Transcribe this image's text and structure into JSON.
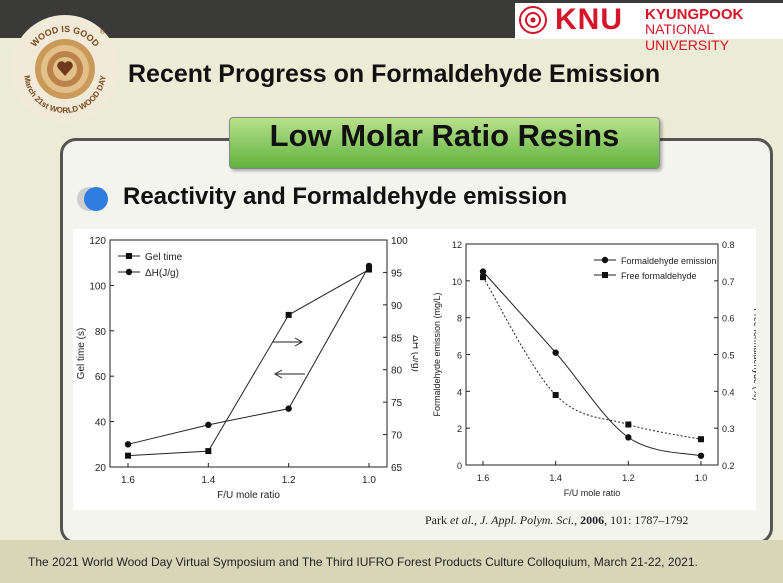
{
  "header": {
    "university_logo": {
      "mark": "KNU",
      "name_line1": "KYUNGPOOK",
      "name_line2": "NATIONAL UNIVERSITY",
      "color": "#d5152a"
    },
    "event_logo": {
      "ring_text": "WOOD IS GOOD",
      "ring_text_bottom": "March 21st WORLD WOOD DAY",
      "symbol": "®"
    }
  },
  "slide": {
    "title": "Recent Progress on Formaldehyde Emission",
    "section_tab": "Low Molar Ratio Resins",
    "subtitle": "Reactivity and Formaldehyde emission",
    "citation": {
      "authors": "Park",
      "etal": "et al.",
      "journal": "J. Appl. Polym. Sci.",
      "year": "2006",
      "details": ", 101: 1787–1792"
    }
  },
  "footer": {
    "text": "The 2021 World Wood Day Virtual Symposium and The Third IUFRO Forest Products Culture Colloquium, March 21-22, 2021."
  },
  "chart_data": [
    {
      "type": "line",
      "xlabel": "F/U mole ratio",
      "ylabel": "Gel time (s)",
      "y2label": "ΔH (J/g)",
      "x": [
        1.6,
        1.4,
        1.2,
        1.0
      ],
      "xticks": [
        "1.6",
        "1.4",
        "1.2",
        "1.0"
      ],
      "ylim": [
        20,
        120
      ],
      "yticks": [
        "20",
        "40",
        "60",
        "80",
        "100",
        "120"
      ],
      "y2lim": [
        65,
        100
      ],
      "y2ticks": [
        "65",
        "70",
        "75",
        "80",
        "85",
        "90",
        "95",
        "100"
      ],
      "series": [
        {
          "name": "Gel time",
          "marker": "square",
          "axis": "left",
          "values": [
            25,
            27,
            87,
            107
          ]
        },
        {
          "name": "ΔH(J/g)",
          "marker": "circle",
          "axis": "right",
          "values": [
            68.5,
            71.5,
            74,
            96
          ]
        }
      ],
      "annotations": [
        "arrow-right",
        "arrow-left"
      ]
    },
    {
      "type": "line",
      "xlabel": "F/U mole ratio",
      "ylabel": "Formaldehyde emission (mg/L)",
      "y2label": "Free formaldehyde (%)",
      "x": [
        1.6,
        1.4,
        1.2,
        1.0
      ],
      "xticks": [
        "1.6",
        "1.4",
        "1.2",
        "1.0"
      ],
      "ylim": [
        0,
        12
      ],
      "yticks": [
        "0",
        "2",
        "4",
        "6",
        "8",
        "10",
        "12"
      ],
      "y2lim": [
        0.2,
        0.8
      ],
      "y2ticks": [
        "0.2",
        "0.3",
        "0.4",
        "0.5",
        "0.6",
        "0.7",
        "0.8"
      ],
      "series": [
        {
          "name": "Formaldehyde emission",
          "marker": "circle",
          "axis": "left",
          "values": [
            10.5,
            6.1,
            1.5,
            0.5
          ]
        },
        {
          "name": "Free formaldehyde",
          "marker": "square",
          "axis": "right",
          "values": [
            0.71,
            0.39,
            0.31,
            0.27
          ]
        }
      ]
    }
  ]
}
